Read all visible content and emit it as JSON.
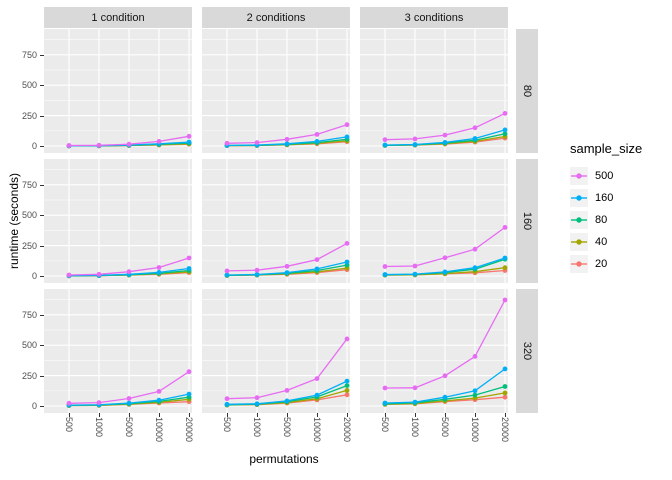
{
  "chart_data": {
    "type": "line",
    "title": "",
    "xlabel": "permutations",
    "ylabel": "runtime (seconds)",
    "x_categories": [
      "500",
      "1000",
      "5000",
      "10000",
      "20000"
    ],
    "y_major_ticks": [
      0,
      250,
      500,
      750
    ],
    "y_minor_ticks": [
      125,
      375,
      625,
      875
    ],
    "ylim": [
      0,
      950
    ],
    "grid": "on",
    "legend_position": "right",
    "col_facets": [
      "1 condition",
      "2 conditions",
      "3 conditions"
    ],
    "row_facets": [
      "80",
      "160",
      "320"
    ],
    "legend": {
      "title": "sample_size",
      "entries": [
        {
          "label": "500",
          "color": "#e76bf3"
        },
        {
          "label": "160",
          "color": "#00b0f6"
        },
        {
          "label": "80",
          "color": "#00bf7d"
        },
        {
          "label": "40",
          "color": "#a3a500"
        },
        {
          "label": "20",
          "color": "#f8766d"
        }
      ]
    },
    "draw_order": [
      "20",
      "40",
      "80",
      "160",
      "500"
    ],
    "colors": {
      "500": "#e76bf3",
      "160": "#00b0f6",
      "80": "#00bf7d",
      "40": "#a3a500",
      "20": "#f8766d"
    },
    "panels": [
      {
        "row": "80",
        "col": "1 condition",
        "series": {
          "20": [
            1,
            2,
            4,
            8,
            15
          ],
          "40": [
            1,
            2,
            5,
            10,
            18
          ],
          "80": [
            1,
            2,
            6,
            13,
            24
          ],
          "160": [
            2,
            3,
            8,
            18,
            32
          ],
          "500": [
            4,
            6,
            15,
            38,
            80
          ]
        }
      },
      {
        "row": "80",
        "col": "2 conditions",
        "series": {
          "20": [
            3,
            4,
            9,
            18,
            35
          ],
          "40": [
            3,
            5,
            11,
            22,
            42
          ],
          "80": [
            4,
            6,
            14,
            28,
            55
          ],
          "160": [
            5,
            8,
            18,
            38,
            75
          ],
          "500": [
            22,
            28,
            55,
            95,
            175
          ]
        }
      },
      {
        "row": "80",
        "col": "3 conditions",
        "series": {
          "20": [
            5,
            7,
            16,
            32,
            65
          ],
          "40": [
            5,
            8,
            19,
            38,
            78
          ],
          "80": [
            6,
            10,
            24,
            48,
            100
          ],
          "160": [
            8,
            12,
            30,
            62,
            132
          ],
          "500": [
            52,
            58,
            90,
            150,
            268
          ]
        }
      },
      {
        "row": "160",
        "col": "1 condition",
        "series": {
          "20": [
            2,
            3,
            7,
            14,
            28
          ],
          "40": [
            2,
            3,
            8,
            17,
            34
          ],
          "80": [
            2,
            4,
            10,
            22,
            45
          ],
          "160": [
            3,
            5,
            14,
            30,
            62
          ],
          "500": [
            8,
            14,
            35,
            70,
            148
          ]
        }
      },
      {
        "row": "160",
        "col": "2 conditions",
        "series": {
          "20": [
            4,
            7,
            14,
            28,
            52
          ],
          "40": [
            5,
            8,
            17,
            34,
            65
          ],
          "80": [
            6,
            10,
            22,
            45,
            90
          ],
          "160": [
            8,
            12,
            28,
            58,
            115
          ],
          "500": [
            42,
            48,
            80,
            135,
            268
          ]
        }
      },
      {
        "row": "160",
        "col": "3 conditions",
        "series": {
          "20": [
            7,
            9,
            17,
            26,
            45
          ],
          "40": [
            8,
            10,
            20,
            36,
            68
          ],
          "80": [
            10,
            13,
            28,
            56,
            138
          ],
          "160": [
            12,
            16,
            34,
            68,
            148
          ],
          "500": [
            78,
            82,
            150,
            220,
            400
          ]
        }
      },
      {
        "row": "320",
        "col": "1 condition",
        "series": {
          "20": [
            4,
            6,
            13,
            25,
            35
          ],
          "40": [
            4,
            6,
            15,
            30,
            55
          ],
          "80": [
            5,
            8,
            19,
            38,
            72
          ],
          "160": [
            7,
            10,
            24,
            48,
            98
          ],
          "500": [
            22,
            28,
            62,
            120,
            282
          ]
        }
      },
      {
        "row": "320",
        "col": "2 conditions",
        "series": {
          "20": [
            8,
            11,
            24,
            50,
            92
          ],
          "40": [
            8,
            12,
            28,
            60,
            128
          ],
          "80": [
            10,
            15,
            35,
            75,
            168
          ],
          "160": [
            14,
            18,
            42,
            90,
            205
          ],
          "500": [
            60,
            68,
            128,
            225,
            552
          ]
        }
      },
      {
        "row": "320",
        "col": "3 conditions",
        "series": {
          "20": [
            13,
            18,
            36,
            52,
            72
          ],
          "40": [
            15,
            20,
            42,
            65,
            108
          ],
          "80": [
            18,
            26,
            55,
            90,
            160
          ],
          "160": [
            25,
            32,
            72,
            125,
            305
          ],
          "500": [
            148,
            150,
            248,
            408,
            872
          ]
        }
      }
    ]
  },
  "theme": {
    "panel_bg": "#ebebeb",
    "strip_bg": "#d9d9d9",
    "grid_color": "#ffffff",
    "axis_text_color": "#4d4d4d",
    "tick_color": "#333333",
    "legend_key_bg": "#f2f2f2"
  }
}
